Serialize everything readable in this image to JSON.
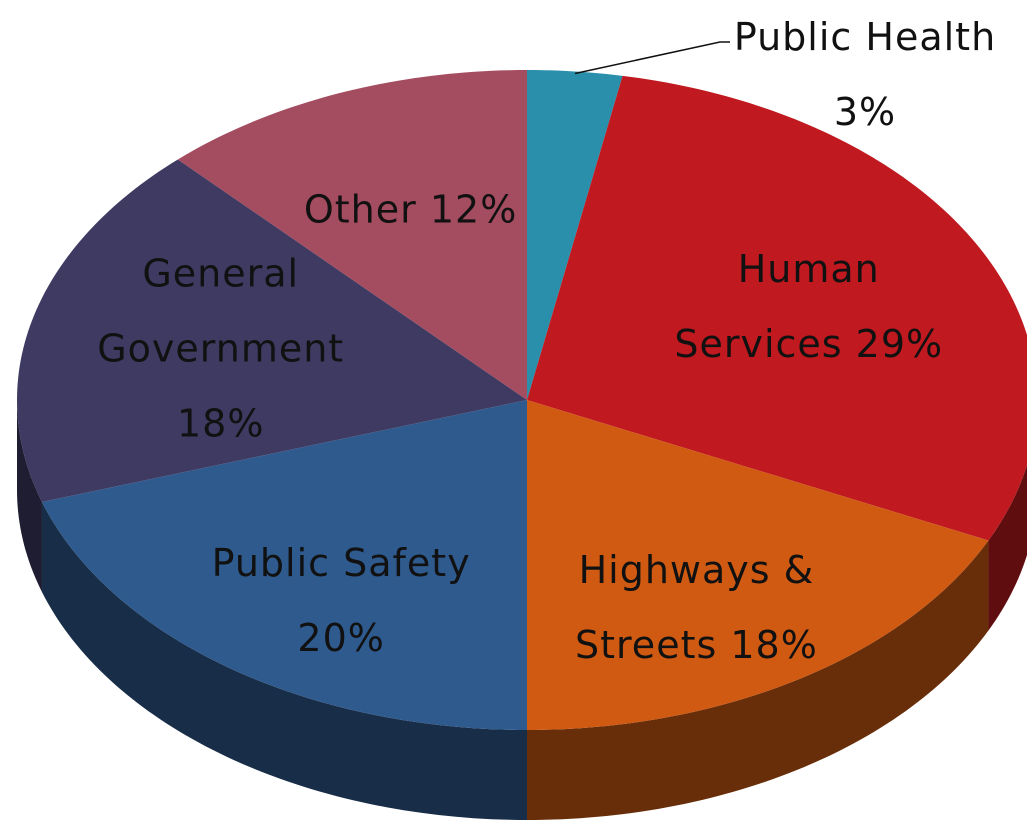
{
  "chart_data": {
    "type": "pie3d",
    "categories": [
      "Public Health",
      "Human Services",
      "Highways & Streets",
      "Public Safety",
      "General Government",
      "Other"
    ],
    "values": [
      3,
      29,
      18,
      20,
      18,
      12
    ],
    "value_labels": [
      "3%",
      "29%",
      "18%",
      "20%",
      "18%",
      "12%"
    ],
    "colors": [
      "#2a8fab",
      "#c0191f",
      "#d05a12",
      "#2f5a8e",
      "#3e3a62",
      "#a44c60"
    ]
  }
}
